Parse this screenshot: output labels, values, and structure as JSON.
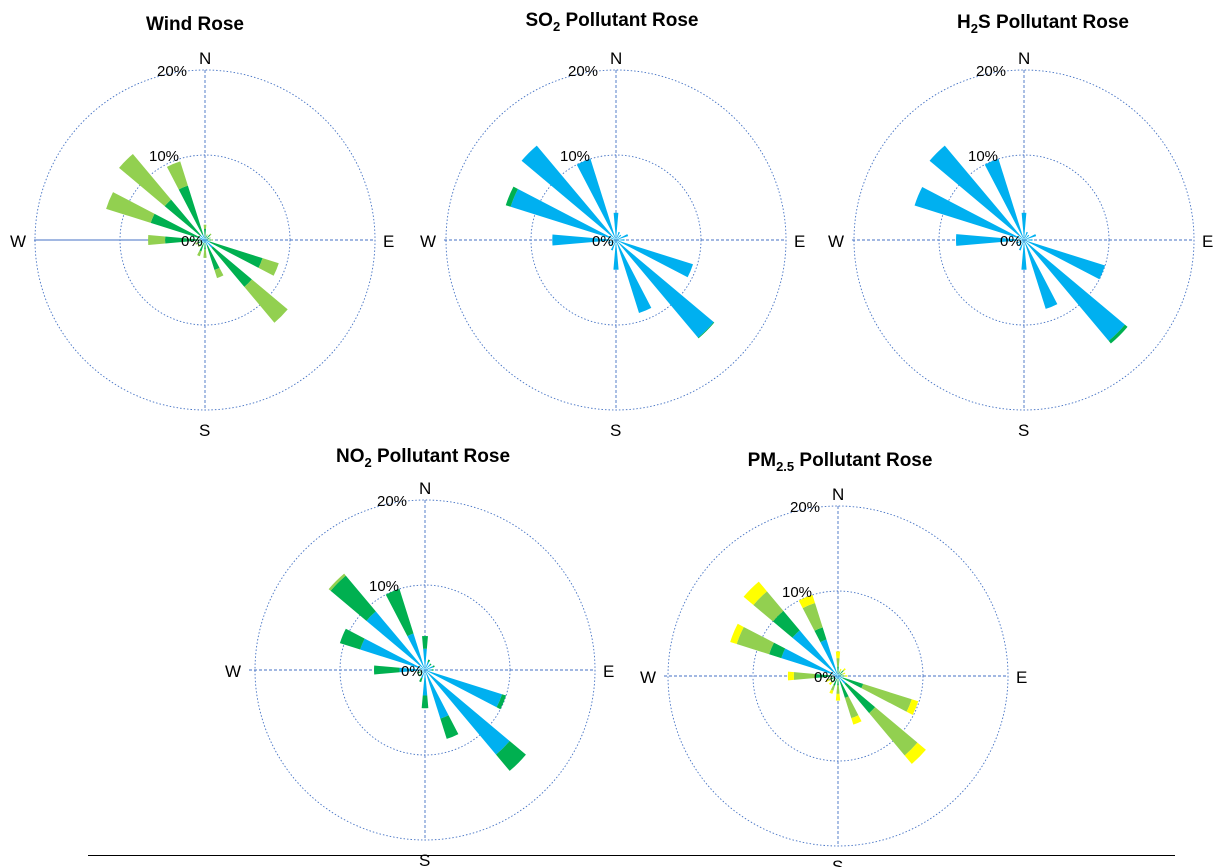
{
  "colors": {
    "yellow": "#FFFF00",
    "lightgreen": "#92D050",
    "green": "#00B050",
    "blue": "#00B0F0",
    "grid": "#4472C4"
  },
  "chart_data": [
    {
      "type": "polar-bar",
      "title_parts": [
        "Wind Rose"
      ],
      "title": "Wind Rose",
      "r_ticks": [
        "0%",
        "10%",
        "20%"
      ],
      "r_max": 20,
      "cardinals": [
        "N",
        "E",
        "S",
        "W"
      ],
      "directions": [
        0,
        22.5,
        45,
        67.5,
        90,
        112.5,
        135,
        157.5,
        180,
        202.5,
        225,
        247.5,
        270,
        292.5,
        315,
        337.5
      ],
      "series_colors": [
        "blue",
        "green",
        "lightgreen",
        "yellow"
      ],
      "values": [
        [
          0.3,
          1.0,
          0.5,
          0
        ],
        [
          0.2,
          0.3,
          0.2,
          0
        ],
        [
          0.3,
          0.5,
          0.2,
          0
        ],
        [
          0.2,
          0.3,
          0.2,
          0
        ],
        [
          0.3,
          0.4,
          0.2,
          0
        ],
        [
          0.6,
          6.5,
          2.0,
          0
        ],
        [
          1.2,
          6.0,
          5.5,
          0
        ],
        [
          0.7,
          3.0,
          1.0,
          0
        ],
        [
          0.3,
          0.8,
          1.0,
          0
        ],
        [
          0.4,
          1.0,
          0.6,
          0
        ],
        [
          0.4,
          0.4,
          0.3,
          0
        ],
        [
          0.4,
          0.5,
          0.3,
          0
        ],
        [
          0.7,
          4.0,
          2.0,
          0
        ],
        [
          0.7,
          6.0,
          5.5,
          0
        ],
        [
          0.7,
          5.5,
          7.0,
          0
        ],
        [
          0.7,
          6.0,
          3.0,
          0
        ]
      ]
    },
    {
      "type": "polar-bar",
      "title_parts": [
        "SO",
        "2",
        "  Pollutant Rose"
      ],
      "title": "SO2 Pollutant Rose",
      "r_ticks": [
        "0%",
        "10%",
        "20%"
      ],
      "r_max": 20,
      "cardinals": [
        "N",
        "E",
        "S",
        "W"
      ],
      "directions": [
        0,
        22.5,
        45,
        67.5,
        90,
        112.5,
        135,
        157.5,
        180,
        202.5,
        225,
        247.5,
        270,
        292.5,
        315,
        337.5
      ],
      "series_colors": [
        "blue",
        "green",
        "lightgreen",
        "yellow"
      ],
      "values": [
        [
          3.2,
          0,
          0,
          0
        ],
        [
          1.0,
          0,
          0,
          0
        ],
        [
          0.8,
          0,
          0,
          0
        ],
        [
          1.5,
          0,
          0,
          0
        ],
        [
          1.0,
          0,
          0,
          0
        ],
        [
          9.5,
          0,
          0,
          0
        ],
        [
          15.0,
          0.1,
          0,
          0
        ],
        [
          9.0,
          0,
          0,
          0
        ],
        [
          3.5,
          0,
          0,
          0
        ],
        [
          1.3,
          0,
          0,
          0
        ],
        [
          0.9,
          0,
          0,
          0
        ],
        [
          1.0,
          0,
          0,
          0
        ],
        [
          7.5,
          0,
          0,
          0
        ],
        [
          13.0,
          0.6,
          0,
          0
        ],
        [
          14.5,
          0,
          0,
          0
        ],
        [
          10.0,
          0,
          0,
          0
        ]
      ]
    },
    {
      "type": "polar-bar",
      "title_parts": [
        "H",
        "2",
        "S Pollutant Rose"
      ],
      "title": "H2S Pollutant Rose",
      "r_ticks": [
        "0%",
        "10%",
        "20%"
      ],
      "r_max": 20,
      "cardinals": [
        "N",
        "E",
        "S",
        "W"
      ],
      "directions": [
        0,
        22.5,
        45,
        67.5,
        90,
        112.5,
        135,
        157.5,
        180,
        202.5,
        225,
        247.5,
        270,
        292.5,
        315,
        337.5
      ],
      "series_colors": [
        "blue",
        "green",
        "lightgreen",
        "yellow"
      ],
      "values": [
        [
          3.2,
          0,
          0,
          0
        ],
        [
          1.0,
          0,
          0,
          0
        ],
        [
          0.8,
          0,
          0,
          0
        ],
        [
          1.5,
          0,
          0,
          0
        ],
        [
          1.0,
          0,
          0,
          0
        ],
        [
          10.0,
          0,
          0,
          0
        ],
        [
          15.5,
          0.4,
          0,
          0
        ],
        [
          8.5,
          0,
          0,
          0
        ],
        [
          3.5,
          0,
          0,
          0
        ],
        [
          1.3,
          0,
          0,
          0
        ],
        [
          0.9,
          0,
          0,
          0
        ],
        [
          1.0,
          0,
          0,
          0
        ],
        [
          8.0,
          0,
          0,
          0
        ],
        [
          13.5,
          0,
          0,
          0
        ],
        [
          14.5,
          0,
          0,
          0
        ],
        [
          10.0,
          0,
          0,
          0
        ]
      ]
    },
    {
      "type": "polar-bar",
      "title_parts": [
        "NO",
        "2",
        " Pollutant Rose"
      ],
      "title": "NO2 Pollutant Rose",
      "r_ticks": [
        "0%",
        "10%",
        "20%"
      ],
      "r_max": 20,
      "cardinals": [
        "N",
        "E",
        "S",
        "W"
      ],
      "directions": [
        0,
        22.5,
        45,
        67.5,
        90,
        112.5,
        135,
        157.5,
        180,
        202.5,
        225,
        247.5,
        270,
        292.5,
        315,
        337.5
      ],
      "series_colors": [
        "blue",
        "green",
        "lightgreen",
        "yellow"
      ],
      "values": [
        [
          2.5,
          1.5,
          0,
          0
        ],
        [
          1.0,
          0.3,
          0,
          0
        ],
        [
          0.8,
          0.2,
          0,
          0
        ],
        [
          1.0,
          0.2,
          0,
          0
        ],
        [
          0.8,
          0.2,
          0,
          0
        ],
        [
          9.5,
          0.5,
          0,
          0
        ],
        [
          13.0,
          2.5,
          0,
          0
        ],
        [
          6.0,
          2.5,
          0,
          0
        ],
        [
          3.0,
          1.5,
          0,
          0
        ],
        [
          1.0,
          0.5,
          0,
          0
        ],
        [
          0.5,
          0.5,
          0,
          0
        ],
        [
          0.5,
          0.5,
          0,
          0
        ],
        [
          3.0,
          3.0,
          0,
          0
        ],
        [
          8.0,
          2.5,
          0,
          0
        ],
        [
          9.0,
          5.5,
          0.3,
          0
        ],
        [
          4.5,
          5.5,
          0,
          0
        ]
      ]
    },
    {
      "type": "polar-bar",
      "title_parts": [
        "PM",
        "2.5",
        " Pollutant Rose"
      ],
      "title": "PM2.5 Pollutant Rose",
      "r_ticks": [
        "0%",
        "10%",
        "20%"
      ],
      "r_max": 20,
      "cardinals": [
        "N",
        "E",
        "S",
        "W"
      ],
      "directions": [
        0,
        22.5,
        45,
        67.5,
        90,
        112.5,
        135,
        157.5,
        180,
        202.5,
        225,
        247.5,
        270,
        292.5,
        315,
        337.5
      ],
      "series_colors": [
        "blue",
        "green",
        "lightgreen",
        "yellow"
      ],
      "values": [
        [
          0.3,
          0.8,
          1.0,
          0.8
        ],
        [
          0.2,
          0.3,
          0.2,
          0.2
        ],
        [
          0.3,
          0.5,
          0.2,
          0.2
        ],
        [
          0.2,
          0.3,
          0.2,
          0.2
        ],
        [
          0.3,
          0.4,
          0.2,
          0.2
        ],
        [
          0.6,
          2.5,
          6.0,
          0.8
        ],
        [
          1.2,
          4.5,
          6.5,
          1.3
        ],
        [
          0.7,
          2.0,
          2.5,
          0.8
        ],
        [
          0.3,
          0.8,
          1.0,
          0.8
        ],
        [
          0.4,
          0.8,
          0.6,
          0.4
        ],
        [
          0.4,
          0.4,
          0.3,
          0.3
        ],
        [
          0.4,
          0.5,
          0.3,
          0.3
        ],
        [
          0.7,
          2.0,
          2.5,
          0.7
        ],
        [
          7.0,
          1.5,
          4.0,
          0.8
        ],
        [
          7.0,
          3.0,
          3.0,
          1.5
        ],
        [
          4.5,
          1.5,
          3.0,
          1.0
        ]
      ]
    }
  ]
}
